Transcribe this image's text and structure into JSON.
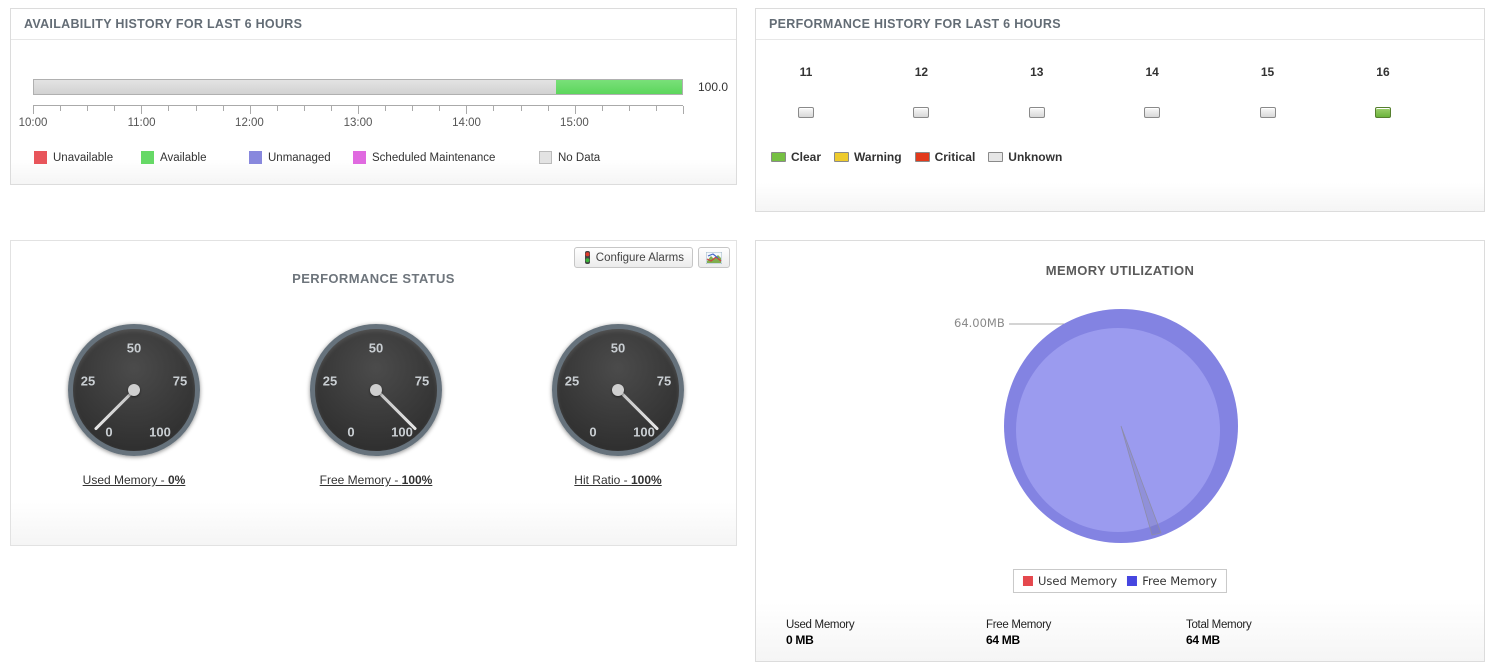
{
  "availability": {
    "title": "AVAILABILITY HISTORY FOR LAST 6 HOURS",
    "value_label": "100.0",
    "bar": {
      "no_data_pct": 80.5,
      "available_pct": 19.5
    },
    "axis_labels": [
      "10:00",
      "11:00",
      "12:00",
      "13:00",
      "14:00",
      "15:00"
    ],
    "legend": [
      {
        "label": "Unavailable",
        "color": "#e8555b"
      },
      {
        "label": "Available",
        "color": "#66d966"
      },
      {
        "label": "Unmanaged",
        "color": "#8888dd"
      },
      {
        "label": "Scheduled Maintenance",
        "color": "#e06ae0"
      },
      {
        "label": "No Data",
        "color": "#e3e3e3"
      }
    ]
  },
  "performance_history": {
    "title": "PERFORMANCE HISTORY FOR LAST 6 HOURS",
    "hours": [
      {
        "label": "11",
        "status": "unknown"
      },
      {
        "label": "12",
        "status": "unknown"
      },
      {
        "label": "13",
        "status": "unknown"
      },
      {
        "label": "14",
        "status": "unknown"
      },
      {
        "label": "15",
        "status": "unknown"
      },
      {
        "label": "16",
        "status": "clear"
      }
    ],
    "legend": [
      {
        "label": "Clear",
        "color": "#76c043"
      },
      {
        "label": "Warning",
        "color": "#eecb2d"
      },
      {
        "label": "Critical",
        "color": "#e2391b"
      },
      {
        "label": "Unknown",
        "color": "#e6e6e6"
      }
    ]
  },
  "performance_status": {
    "title": "PERFORMANCE STATUS",
    "configure_alarms_label": "Configure Alarms",
    "gauge_ticks": [
      "0",
      "25",
      "50",
      "75",
      "100"
    ],
    "gauges": [
      {
        "name": "Used Memory",
        "link_prefix": "Used Memory - ",
        "pct_label": "0%",
        "value_pct": 0
      },
      {
        "name": "Free Memory",
        "link_prefix": "Free Memory - ",
        "pct_label": "100%",
        "value_pct": 100
      },
      {
        "name": "Hit Ratio",
        "link_prefix": "Hit Ratio - ",
        "pct_label": "100%",
        "value_pct": 100
      }
    ]
  },
  "memory_utilization": {
    "title": "MEMORY UTILIZATION",
    "callout_label": "64.00MB",
    "pie": {
      "free_color": "#9b9bef",
      "rim_color": "#8383e2"
    },
    "legend": [
      {
        "label": "Used Memory",
        "color": "#e5484d"
      },
      {
        "label": "Free Memory",
        "color": "#4646e0"
      }
    ],
    "stats": [
      {
        "label": "Used Memory",
        "value": "0 MB"
      },
      {
        "label": "Free Memory",
        "value": "64 MB"
      },
      {
        "label": "Total Memory",
        "value": "64 MB"
      }
    ]
  },
  "chart_data": [
    {
      "type": "bar",
      "title": "AVAILABILITY HISTORY FOR LAST 6 HOURS",
      "orientation": "horizontal-timeline",
      "x_range": [
        "10:00",
        "16:00"
      ],
      "segments": [
        {
          "label": "No Data",
          "from": "10:00",
          "to": "14:50",
          "pct": 80.5
        },
        {
          "label": "Available",
          "from": "14:50",
          "to": "16:00",
          "pct": 19.5
        }
      ],
      "value_label": "100.0",
      "legend": [
        "Unavailable",
        "Available",
        "Unmanaged",
        "Scheduled Maintenance",
        "No Data"
      ]
    },
    {
      "type": "heatmap",
      "title": "PERFORMANCE HISTORY FOR LAST 6 HOURS",
      "categories": [
        "11",
        "12",
        "13",
        "14",
        "15",
        "16"
      ],
      "values": [
        "Unknown",
        "Unknown",
        "Unknown",
        "Unknown",
        "Unknown",
        "Clear"
      ],
      "legend": [
        "Clear",
        "Warning",
        "Critical",
        "Unknown"
      ]
    },
    {
      "type": "gauge",
      "title": "PERFORMANCE STATUS",
      "scale": [
        0,
        100
      ],
      "tick_labels": [
        0,
        25,
        50,
        75,
        100
      ],
      "series": [
        {
          "name": "Used Memory",
          "value": 0
        },
        {
          "name": "Free Memory",
          "value": 100
        },
        {
          "name": "Hit Ratio",
          "value": 100
        }
      ]
    },
    {
      "type": "pie",
      "title": "MEMORY UTILIZATION",
      "labels": [
        "Used Memory",
        "Free Memory"
      ],
      "values_mb": [
        0,
        64
      ],
      "annotations": [
        "64.00MB"
      ],
      "legend_position": "bottom",
      "totals": {
        "used_mb": 0,
        "free_mb": 64,
        "total_mb": 64
      }
    }
  ]
}
